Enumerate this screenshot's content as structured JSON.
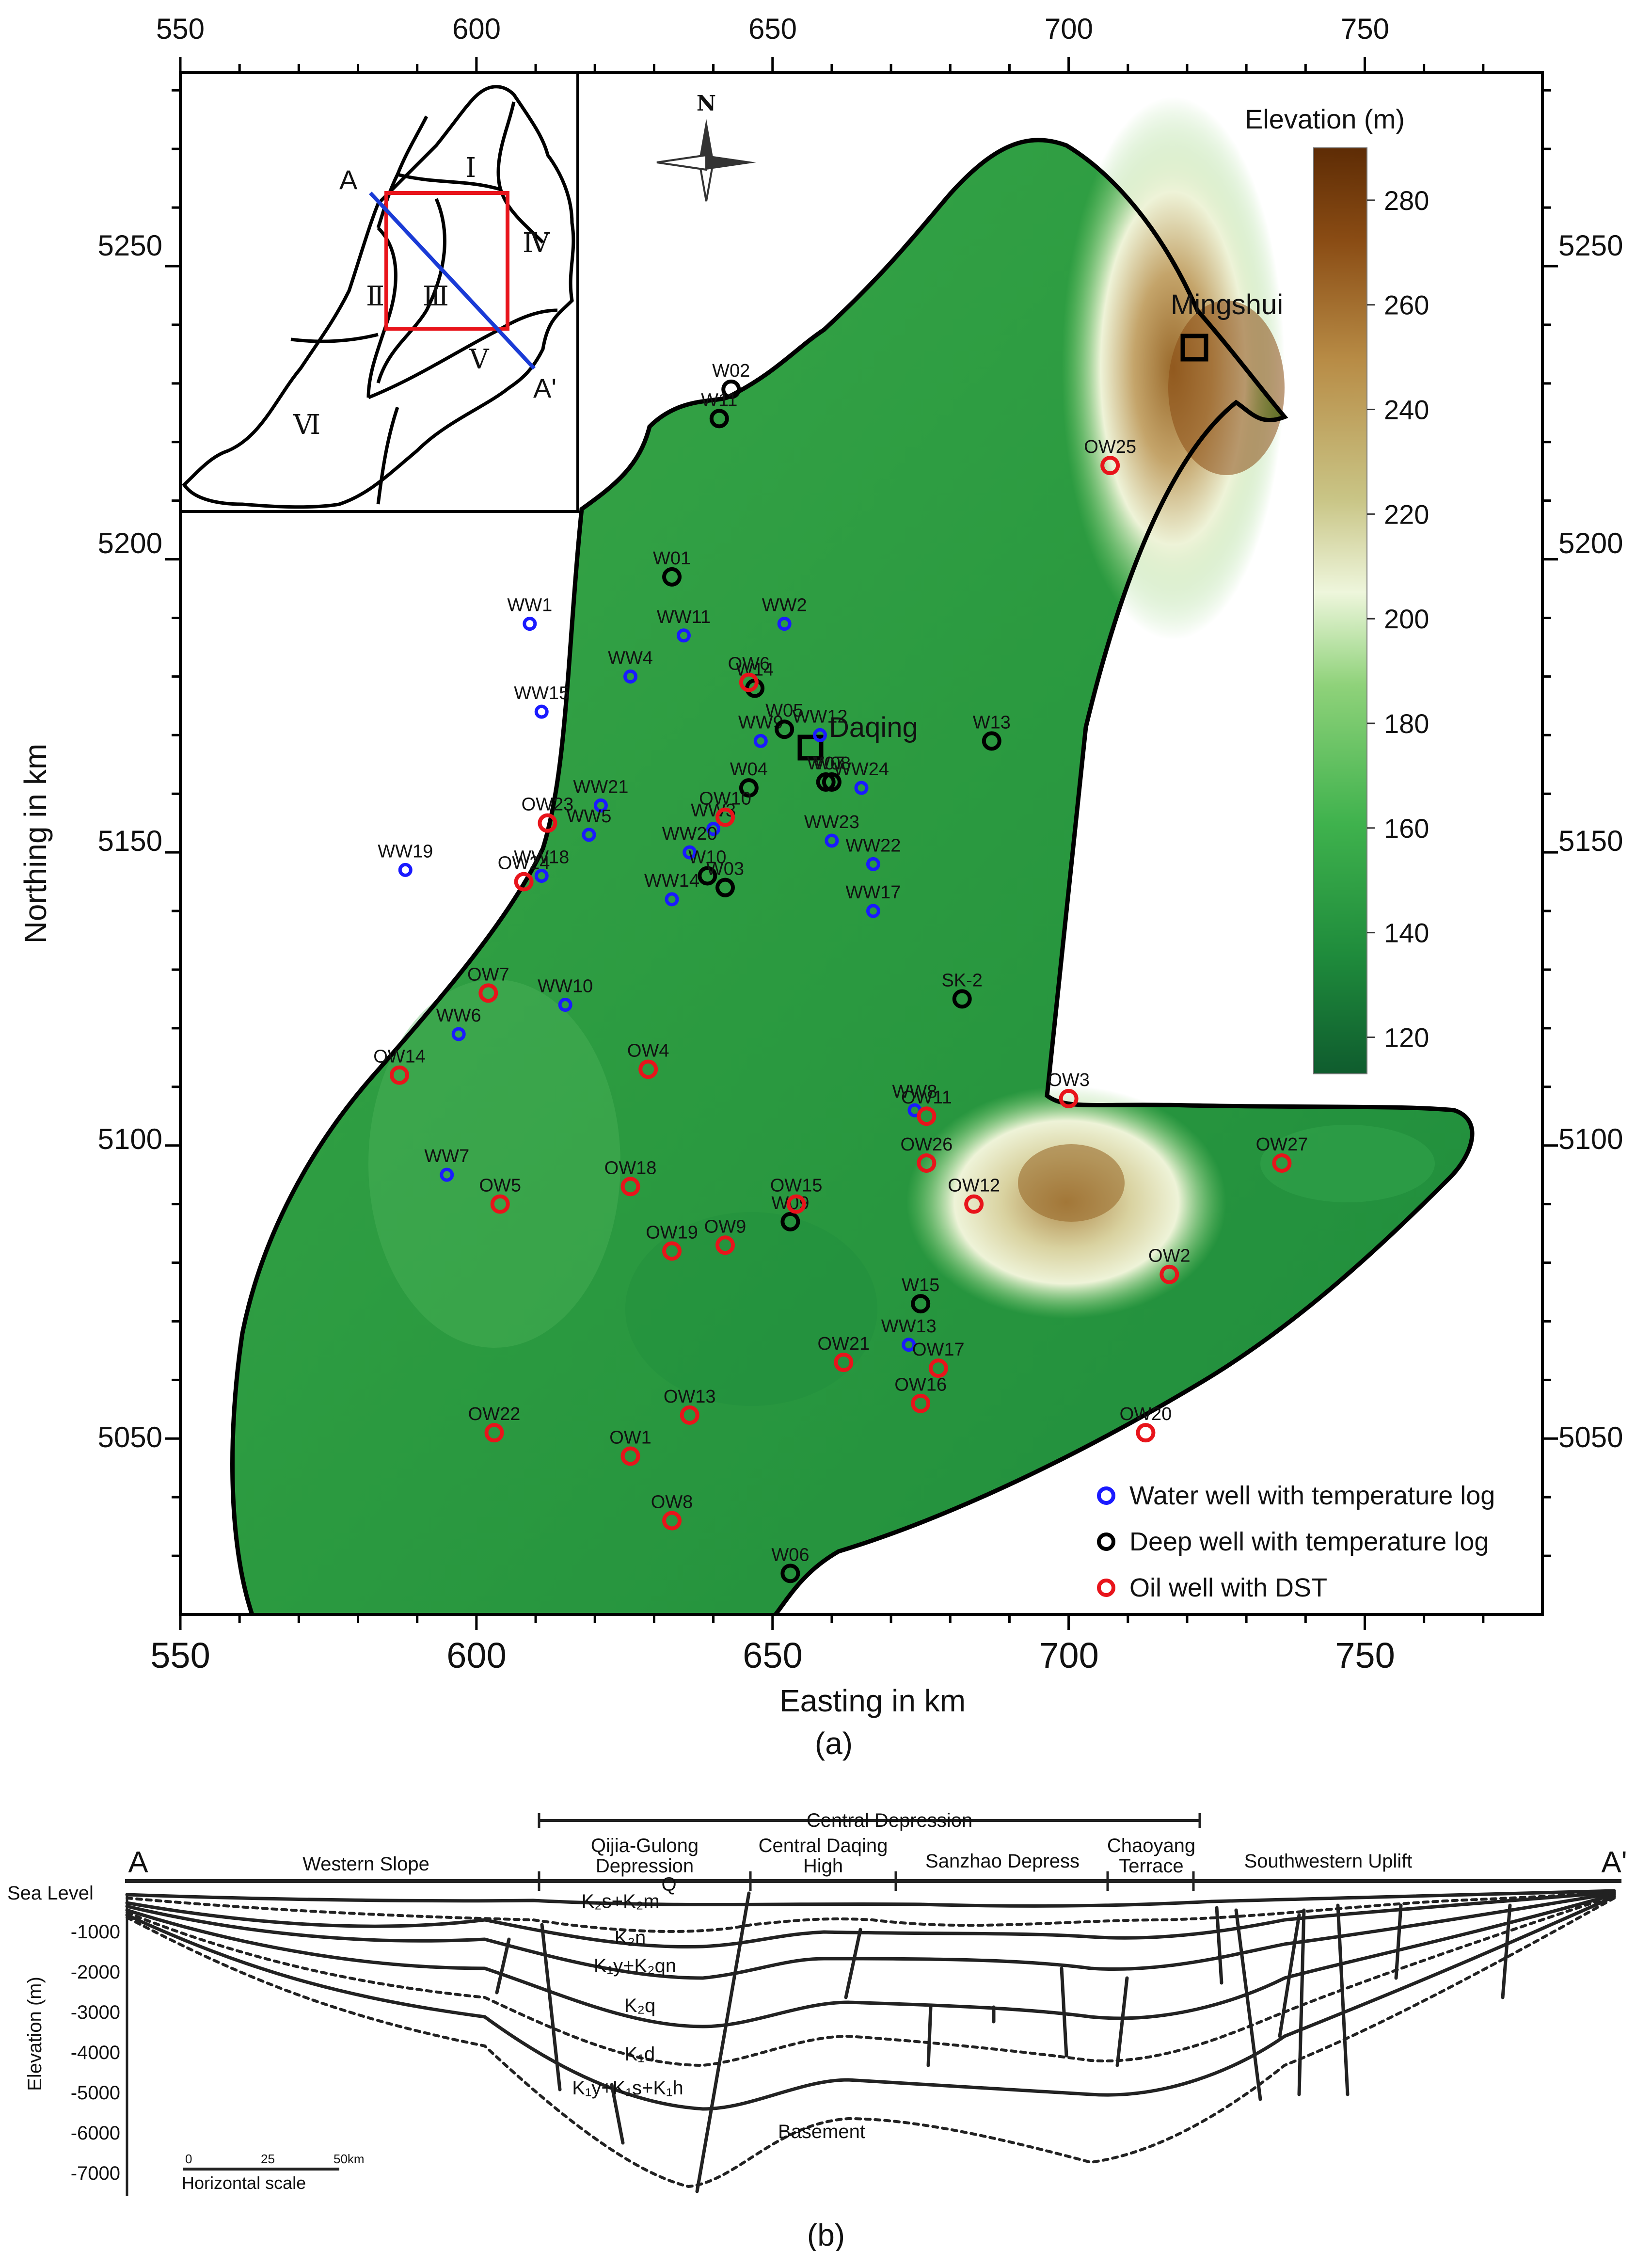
{
  "panel_a": {
    "caption": "(a)",
    "x_axis_label": "Easting in km",
    "y_axis_label": "Northing in km",
    "x_ticks": [
      "550",
      "600",
      "650",
      "700",
      "750"
    ],
    "y_ticks": [
      "5050",
      "5100",
      "5150",
      "5200",
      "5250"
    ],
    "x_range": [
      550,
      780
    ],
    "y_range": [
      5020,
      5283
    ],
    "north_label": "N",
    "colorbar": {
      "title": "Elevation (m)",
      "ticks": [
        "280",
        "260",
        "240",
        "220",
        "200",
        "180",
        "160",
        "140",
        "120"
      ],
      "range": [
        113,
        290
      ],
      "colors": [
        "#0f5c2e",
        "#1f8c3c",
        "#3fb24d",
        "#8fd27a",
        "#eef6dc",
        "#c9c586",
        "#b88c46",
        "#8a4c14",
        "#5e2c05"
      ]
    },
    "towns": [
      {
        "name": "Daqing",
        "e": 657,
        "n": 5165
      },
      {
        "name": "Mingshui",
        "e": 721,
        "n": 5233
      }
    ],
    "inset": {
      "regions": [
        "Ⅰ",
        "Ⅱ",
        "Ⅲ",
        "Ⅳ",
        "Ⅴ",
        "Ⅵ"
      ],
      "section_start": "A",
      "section_end": "A'"
    },
    "legend": [
      {
        "label": "Water well with temperature log",
        "color": "#1a1aff"
      },
      {
        "label": "Deep well with temperature log",
        "color": "#000000"
      },
      {
        "label": "Oil well with DST",
        "color": "#e8141b"
      }
    ],
    "water_wells": [
      {
        "name": "WW1",
        "e": 609,
        "n": 5189
      },
      {
        "name": "WW2",
        "e": 652,
        "n": 5189
      },
      {
        "name": "WW11",
        "e": 635,
        "n": 5187
      },
      {
        "name": "WW4",
        "e": 626,
        "n": 5180
      },
      {
        "name": "WW15",
        "e": 611,
        "n": 5174
      },
      {
        "name": "WW12",
        "e": 658,
        "n": 5170
      },
      {
        "name": "WW9",
        "e": 648,
        "n": 5169
      },
      {
        "name": "WW24",
        "e": 665,
        "n": 5161
      },
      {
        "name": "WW21",
        "e": 621,
        "n": 5158
      },
      {
        "name": "WW5",
        "e": 619,
        "n": 5153
      },
      {
        "name": "WW3",
        "e": 640,
        "n": 5154
      },
      {
        "name": "WW23",
        "e": 660,
        "n": 5152
      },
      {
        "name": "WW20",
        "e": 636,
        "n": 5150
      },
      {
        "name": "WW19",
        "e": 588,
        "n": 5147
      },
      {
        "name": "WW18",
        "e": 611,
        "n": 5146
      },
      {
        "name": "WW22",
        "e": 667,
        "n": 5148
      },
      {
        "name": "WW14",
        "e": 633,
        "n": 5142
      },
      {
        "name": "WW17",
        "e": 667,
        "n": 5140
      },
      {
        "name": "WW10",
        "e": 615,
        "n": 5124
      },
      {
        "name": "WW6",
        "e": 597,
        "n": 5119
      },
      {
        "name": "WW8",
        "e": 674,
        "n": 5106
      },
      {
        "name": "WW7",
        "e": 595,
        "n": 5095
      },
      {
        "name": "WW13",
        "e": 673,
        "n": 5066
      }
    ],
    "deep_wells": [
      {
        "name": "W02",
        "e": 643,
        "n": 5229
      },
      {
        "name": "W11",
        "e": 641,
        "n": 5224
      },
      {
        "name": "W01",
        "e": 633,
        "n": 5197
      },
      {
        "name": "W14",
        "e": 647,
        "n": 5178
      },
      {
        "name": "W05",
        "e": 652,
        "n": 5171
      },
      {
        "name": "W13",
        "e": 687,
        "n": 5169
      },
      {
        "name": "W04",
        "e": 646,
        "n": 5161
      },
      {
        "name": "W07",
        "e": 659,
        "n": 5162
      },
      {
        "name": "W08",
        "e": 660,
        "n": 5162
      },
      {
        "name": "W10",
        "e": 639,
        "n": 5146
      },
      {
        "name": "W03",
        "e": 642,
        "n": 5144
      },
      {
        "name": "SK-2",
        "e": 682,
        "n": 5125
      },
      {
        "name": "W09",
        "e": 653,
        "n": 5087
      },
      {
        "name": "W15",
        "e": 675,
        "n": 5073
      },
      {
        "name": "W06",
        "e": 653,
        "n": 5027
      }
    ],
    "oil_wells": [
      {
        "name": "OW25",
        "e": 707,
        "n": 5216
      },
      {
        "name": "OW6",
        "e": 646,
        "n": 5179
      },
      {
        "name": "OW10",
        "e": 642,
        "n": 5156
      },
      {
        "name": "OW23",
        "e": 612,
        "n": 5155
      },
      {
        "name": "OW24",
        "e": 608,
        "n": 5145
      },
      {
        "name": "OW7",
        "e": 602,
        "n": 5126
      },
      {
        "name": "OW4",
        "e": 629,
        "n": 5113
      },
      {
        "name": "OW14",
        "e": 587,
        "n": 5112
      },
      {
        "name": "OW3",
        "e": 700,
        "n": 5108
      },
      {
        "name": "OW11",
        "e": 676,
        "n": 5105
      },
      {
        "name": "OW26",
        "e": 676,
        "n": 5097
      },
      {
        "name": "OW27",
        "e": 736,
        "n": 5097
      },
      {
        "name": "OW5",
        "e": 604,
        "n": 5090
      },
      {
        "name": "OW18",
        "e": 626,
        "n": 5093
      },
      {
        "name": "OW15",
        "e": 654,
        "n": 5090
      },
      {
        "name": "OW12",
        "e": 684,
        "n": 5090
      },
      {
        "name": "OW9",
        "e": 642,
        "n": 5083
      },
      {
        "name": "OW19",
        "e": 633,
        "n": 5082
      },
      {
        "name": "OW2",
        "e": 717,
        "n": 5078
      },
      {
        "name": "OW21",
        "e": 662,
        "n": 5063
      },
      {
        "name": "OW17",
        "e": 678,
        "n": 5062
      },
      {
        "name": "OW16",
        "e": 675,
        "n": 5056
      },
      {
        "name": "OW13",
        "e": 636,
        "n": 5054
      },
      {
        "name": "OW22",
        "e": 603,
        "n": 5051
      },
      {
        "name": "OW20",
        "e": 713,
        "n": 5051
      },
      {
        "name": "OW1",
        "e": 626,
        "n": 5047
      },
      {
        "name": "OW8",
        "e": 633,
        "n": 5036
      }
    ]
  },
  "panel_b": {
    "caption": "(b)",
    "section_start": "A",
    "section_end": "A'",
    "central_depression_label": "Central Depression",
    "units": [
      {
        "lines": [
          "Western Slope"
        ]
      },
      {
        "lines": [
          "Qijia-Gulong",
          "Depression"
        ]
      },
      {
        "lines": [
          "Central Daqing",
          "High"
        ]
      },
      {
        "lines": [
          "Sanzhao Depress"
        ]
      },
      {
        "lines": [
          "Chaoyang",
          "Terrace"
        ]
      },
      {
        "lines": [
          "Southwestern Uplift"
        ]
      }
    ],
    "sea_level_label": "Sea Level",
    "y_axis_label": "Elevation (m)",
    "y_ticks": [
      "-1000",
      "-2000",
      "-3000",
      "-4000",
      "-5000",
      "-6000",
      "-7000"
    ],
    "strata": [
      "Q",
      "K₂s+K₂m",
      "K₂n",
      "K₁y+K₂qn",
      "K₂q",
      "K₁d",
      "K₁y+K₁s+K₁h",
      "Basement"
    ],
    "scale": {
      "title": "Horizontal scale",
      "ticks": [
        "0",
        "25",
        "50km"
      ]
    }
  }
}
